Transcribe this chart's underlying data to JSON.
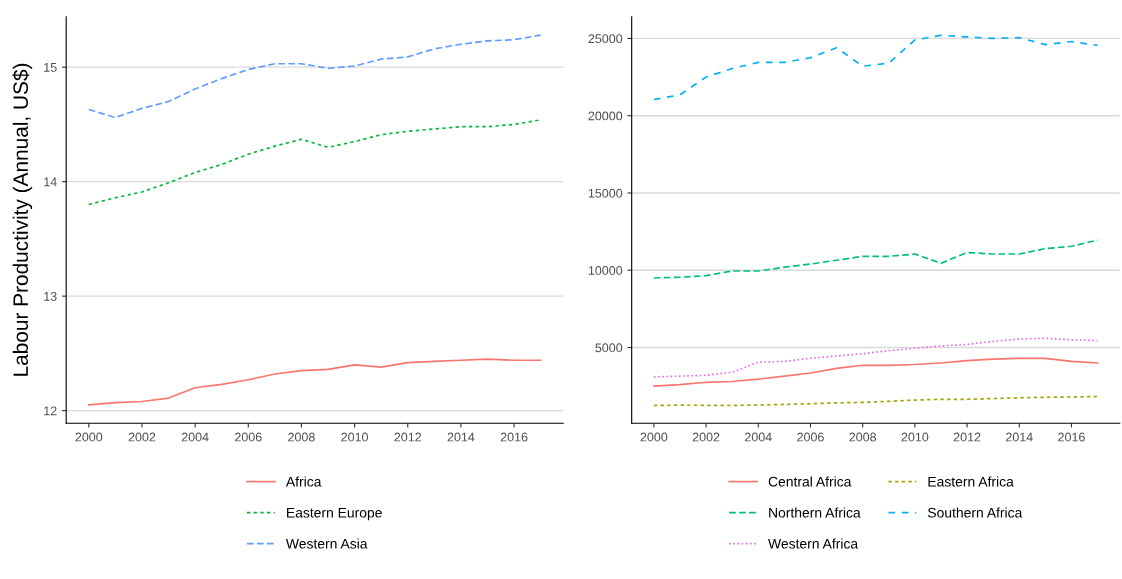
{
  "chart_data": [
    {
      "type": "line",
      "ylabel": "Labour Productivity (Annual, US$)",
      "x": [
        2000,
        2001,
        2002,
        2003,
        2004,
        2005,
        2006,
        2007,
        2008,
        2009,
        2010,
        2011,
        2012,
        2013,
        2014,
        2015,
        2016,
        2017
      ],
      "xlim": [
        1999.15,
        2017.85
      ],
      "xticks": [
        2000,
        2002,
        2004,
        2006,
        2008,
        2010,
        2012,
        2014,
        2016
      ],
      "ylim": [
        11.89,
        15.44
      ],
      "yticks": [
        12,
        13,
        14,
        15
      ],
      "grid": "y",
      "legend": "bottom",
      "series": [
        {
          "name": "Africa",
          "color": "#f8766d",
          "line_style": "solid",
          "values": [
            12.05,
            12.07,
            12.08,
            12.11,
            12.2,
            12.23,
            12.27,
            12.32,
            12.35,
            12.36,
            12.4,
            12.38,
            12.42,
            12.43,
            12.44,
            12.45,
            12.44,
            12.44
          ]
        },
        {
          "name": "Eastern Europe",
          "color": "#00ba38",
          "line_style": "dashed",
          "values": [
            13.8,
            13.86,
            13.91,
            13.99,
            14.08,
            14.15,
            14.24,
            14.31,
            14.37,
            14.3,
            14.35,
            14.41,
            14.44,
            14.46,
            14.48,
            14.48,
            14.5,
            14.54
          ]
        },
        {
          "name": "Western Asia",
          "color": "#619cff",
          "line_style": "dashed",
          "values": [
            14.63,
            14.56,
            14.64,
            14.7,
            14.81,
            14.9,
            14.98,
            15.03,
            15.03,
            14.99,
            15.01,
            15.07,
            15.09,
            15.16,
            15.2,
            15.23,
            15.24,
            15.28
          ]
        }
      ]
    },
    {
      "type": "line",
      "x": [
        2000,
        2001,
        2002,
        2003,
        2004,
        2005,
        2006,
        2007,
        2008,
        2009,
        2010,
        2011,
        2012,
        2013,
        2014,
        2015,
        2016,
        2017
      ],
      "xlim": [
        1999.15,
        2017.85
      ],
      "xticks": [
        2000,
        2002,
        2004,
        2006,
        2008,
        2010,
        2012,
        2014,
        2016
      ],
      "ylim": [
        100,
        26400
      ],
      "yticks": [
        5000,
        10000,
        15000,
        20000,
        25000
      ],
      "grid": "y",
      "legend": "bottom",
      "series": [
        {
          "name": "Central Africa",
          "color": "#f8766d",
          "line_style": "solid",
          "values": [
            2500,
            2600,
            2750,
            2800,
            2950,
            3150,
            3350,
            3650,
            3850,
            3850,
            3900,
            4000,
            4150,
            4250,
            4300,
            4300,
            4100,
            4000
          ]
        },
        {
          "name": "Eastern Africa",
          "color": "#a3a500",
          "line_style": "dashed",
          "values": [
            1250,
            1270,
            1260,
            1250,
            1280,
            1320,
            1360,
            1420,
            1450,
            1520,
            1600,
            1650,
            1650,
            1700,
            1750,
            1780,
            1800,
            1830
          ]
        },
        {
          "name": "Northern Africa",
          "color": "#00bf7d",
          "line_style": "dashed",
          "values": [
            9500,
            9550,
            9650,
            9950,
            9950,
            10200,
            10400,
            10650,
            10900,
            10900,
            11050,
            10450,
            11150,
            11050,
            11050,
            11400,
            11550,
            11950
          ]
        },
        {
          "name": "Southern Africa",
          "color": "#00b0f6",
          "line_style": "dashed",
          "values": [
            21050,
            21350,
            22500,
            23050,
            23450,
            23450,
            23750,
            24400,
            23200,
            23400,
            24900,
            25200,
            25100,
            25000,
            25050,
            24600,
            24800,
            24550
          ]
        },
        {
          "name": "Western Africa",
          "color": "#e76bf3",
          "line_style": "dotted",
          "values": [
            3100,
            3150,
            3200,
            3400,
            4050,
            4100,
            4300,
            4450,
            4600,
            4800,
            4950,
            5100,
            5200,
            5400,
            5550,
            5600,
            5500,
            5450
          ]
        }
      ]
    }
  ]
}
